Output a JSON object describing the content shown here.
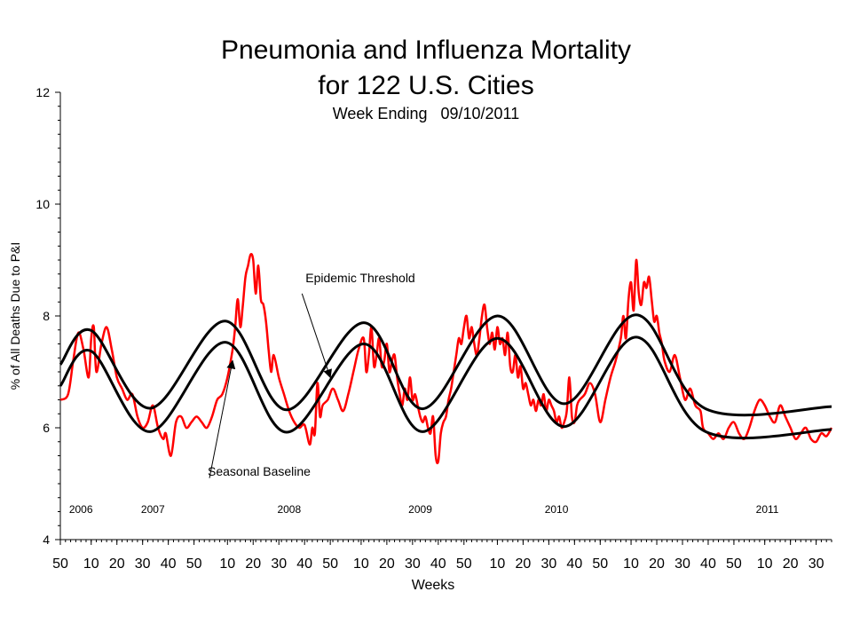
{
  "chart_data": {
    "type": "line",
    "title_line1": "Pneumonia and Influenza Mortality",
    "title_line2": "for 122 U.S. Cities",
    "subtitle": "Week Ending   09/10/2011",
    "xlabel": "Weeks",
    "ylabel": "% of All Deaths Due to P&I",
    "ylim": [
      4,
      12
    ],
    "y_ticks": [
      "4",
      "6",
      "8",
      "10",
      "12"
    ],
    "x_ticks": [
      "50",
      "10",
      "20",
      "30",
      "40",
      "50",
      "10",
      "20",
      "30",
      "40",
      "50",
      "10",
      "20",
      "30",
      "40",
      "50",
      "10",
      "20",
      "30",
      "40",
      "50",
      "10",
      "20",
      "30",
      "40",
      "50",
      "10",
      "20",
      "30"
    ],
    "x_tick_index": [
      0,
      12,
      22,
      32,
      42,
      52,
      65,
      75,
      85,
      95,
      105,
      117,
      127,
      137,
      147,
      157,
      170,
      180,
      190,
      200,
      210,
      222,
      232,
      242,
      252,
      262,
      274,
      284,
      294
    ],
    "week_count": 300,
    "year_labels": [
      {
        "text": "2006",
        "index": 8
      },
      {
        "text": "2007",
        "index": 36
      },
      {
        "text": "2008",
        "index": 89
      },
      {
        "text": "2009",
        "index": 140
      },
      {
        "text": "2010",
        "index": 193
      },
      {
        "text": "2011",
        "index": 275
      }
    ],
    "annotations": [
      {
        "text": "Epidemic Threshold",
        "arrow_from": [
          94,
          8.4
        ],
        "arrow_to": [
          105,
          6.9
        ]
      },
      {
        "text": "Seasonal Baseline",
        "arrow_from": [
          58,
          5.1
        ],
        "arrow_to": [
          67,
          7.2
        ]
      }
    ],
    "series": [
      {
        "name": "Epidemic Threshold",
        "color": "#000000",
        "points": [
          [
            0,
            7.13
          ],
          [
            12,
            7.74
          ],
          [
            35,
            6.35
          ],
          [
            64,
            7.91
          ],
          [
            88,
            6.32
          ],
          [
            118,
            7.88
          ],
          [
            141,
            6.34
          ],
          [
            170,
            8.0
          ],
          [
            196,
            6.43
          ],
          [
            224,
            8.02
          ],
          [
            251,
            6.34
          ],
          [
            300,
            6.38
          ]
        ]
      },
      {
        "name": "Seasonal Baseline",
        "color": "#000000",
        "points": [
          [
            0,
            6.75
          ],
          [
            12,
            7.37
          ],
          [
            35,
            5.93
          ],
          [
            64,
            7.53
          ],
          [
            88,
            5.92
          ],
          [
            118,
            7.5
          ],
          [
            141,
            5.93
          ],
          [
            170,
            7.6
          ],
          [
            196,
            6.02
          ],
          [
            224,
            7.62
          ],
          [
            251,
            5.93
          ],
          [
            300,
            5.97
          ]
        ]
      },
      {
        "name": "",
        "color": "#ff0000",
        "points": [
          [
            0,
            6.5
          ],
          [
            3,
            6.6
          ],
          [
            5,
            7.2
          ],
          [
            7,
            7.7
          ],
          [
            9,
            7.4
          ],
          [
            11,
            6.9
          ],
          [
            12,
            7.6
          ],
          [
            13,
            7.8
          ],
          [
            14,
            7.0
          ],
          [
            16,
            7.5
          ],
          [
            18,
            7.8
          ],
          [
            20,
            7.4
          ],
          [
            22,
            6.9
          ],
          [
            24,
            6.7
          ],
          [
            26,
            6.5
          ],
          [
            28,
            6.6
          ],
          [
            30,
            6.2
          ],
          [
            32,
            6.0
          ],
          [
            34,
            6.1
          ],
          [
            36,
            6.4
          ],
          [
            38,
            6.0
          ],
          [
            40,
            5.8
          ],
          [
            41,
            5.9
          ],
          [
            43,
            5.5
          ],
          [
            45,
            6.1
          ],
          [
            47,
            6.2
          ],
          [
            49,
            6.0
          ],
          [
            51,
            6.1
          ],
          [
            53,
            6.2
          ],
          [
            55,
            6.1
          ],
          [
            57,
            6.0
          ],
          [
            59,
            6.2
          ],
          [
            61,
            6.5
          ],
          [
            63,
            6.6
          ],
          [
            65,
            6.9
          ],
          [
            67,
            7.4
          ],
          [
            68,
            7.8
          ],
          [
            69,
            8.3
          ],
          [
            70,
            7.8
          ],
          [
            71,
            8.2
          ],
          [
            72,
            8.7
          ],
          [
            73,
            8.9
          ],
          [
            74,
            9.1
          ],
          [
            75,
            9.0
          ],
          [
            76,
            8.4
          ],
          [
            77,
            8.9
          ],
          [
            78,
            8.3
          ],
          [
            79,
            8.2
          ],
          [
            80,
            7.9
          ],
          [
            81,
            7.4
          ],
          [
            82,
            7.0
          ],
          [
            83,
            7.3
          ],
          [
            85,
            6.9
          ],
          [
            87,
            6.6
          ],
          [
            89,
            6.3
          ],
          [
            91,
            6.1
          ],
          [
            93,
            6.0
          ],
          [
            95,
            6.05
          ],
          [
            97,
            5.7
          ],
          [
            98,
            6.0
          ],
          [
            99,
            5.9
          ],
          [
            100,
            6.8
          ],
          [
            101,
            6.2
          ],
          [
            102,
            6.4
          ],
          [
            104,
            6.5
          ],
          [
            106,
            6.7
          ],
          [
            108,
            6.5
          ],
          [
            110,
            6.3
          ],
          [
            112,
            6.6
          ],
          [
            114,
            7.0
          ],
          [
            116,
            7.4
          ],
          [
            118,
            7.6
          ],
          [
            119,
            7.0
          ],
          [
            120,
            7.3
          ],
          [
            121,
            7.8
          ],
          [
            122,
            7.1
          ],
          [
            123,
            7.3
          ],
          [
            124,
            7.6
          ],
          [
            125,
            7.1
          ],
          [
            126,
            7.2
          ],
          [
            127,
            7.5
          ],
          [
            128,
            7.0
          ],
          [
            129,
            7.2
          ],
          [
            130,
            7.3
          ],
          [
            131,
            6.9
          ],
          [
            132,
            6.6
          ],
          [
            133,
            6.4
          ],
          [
            134,
            6.7
          ],
          [
            135,
            6.5
          ],
          [
            136,
            6.9
          ],
          [
            137,
            6.5
          ],
          [
            138,
            6.6
          ],
          [
            139,
            6.4
          ],
          [
            140,
            6.2
          ],
          [
            141,
            6.1
          ],
          [
            142,
            6.2
          ],
          [
            143,
            6.0
          ],
          [
            144,
            5.9
          ],
          [
            145,
            6.2
          ],
          [
            146,
            5.5
          ],
          [
            147,
            5.4
          ],
          [
            148,
            5.9
          ],
          [
            149,
            6.1
          ],
          [
            150,
            6.2
          ],
          [
            151,
            6.5
          ],
          [
            152,
            6.7
          ],
          [
            153,
            7.0
          ],
          [
            154,
            7.3
          ],
          [
            155,
            7.6
          ],
          [
            156,
            7.5
          ],
          [
            157,
            7.8
          ],
          [
            158,
            8.0
          ],
          [
            159,
            7.6
          ],
          [
            160,
            7.8
          ],
          [
            161,
            7.5
          ],
          [
            162,
            7.3
          ],
          [
            163,
            7.6
          ],
          [
            164,
            8.0
          ],
          [
            165,
            8.2
          ],
          [
            166,
            7.8
          ],
          [
            167,
            7.5
          ],
          [
            168,
            7.7
          ],
          [
            169,
            7.4
          ],
          [
            170,
            7.8
          ],
          [
            171,
            7.5
          ],
          [
            172,
            7.6
          ],
          [
            173,
            7.3
          ],
          [
            174,
            7.7
          ],
          [
            175,
            7.1
          ],
          [
            176,
            7.0
          ],
          [
            177,
            7.3
          ],
          [
            178,
            6.9
          ],
          [
            179,
            7.1
          ],
          [
            180,
            6.7
          ],
          [
            181,
            6.8
          ],
          [
            182,
            6.6
          ],
          [
            183,
            6.4
          ],
          [
            184,
            6.5
          ],
          [
            185,
            6.3
          ],
          [
            186,
            6.5
          ],
          [
            187,
            6.4
          ],
          [
            188,
            6.6
          ],
          [
            189,
            6.3
          ],
          [
            190,
            6.5
          ],
          [
            191,
            6.4
          ],
          [
            192,
            6.3
          ],
          [
            193,
            6.1
          ],
          [
            194,
            6.2
          ],
          [
            195,
            6.0
          ],
          [
            196,
            6.1
          ],
          [
            197,
            6.3
          ],
          [
            198,
            6.9
          ],
          [
            199,
            6.2
          ],
          [
            200,
            6.1
          ],
          [
            201,
            6.4
          ],
          [
            202,
            6.5
          ],
          [
            204,
            6.6
          ],
          [
            206,
            6.8
          ],
          [
            208,
            6.6
          ],
          [
            210,
            6.1
          ],
          [
            212,
            6.5
          ],
          [
            214,
            6.9
          ],
          [
            216,
            7.2
          ],
          [
            218,
            7.6
          ],
          [
            219,
            8.0
          ],
          [
            220,
            7.6
          ],
          [
            221,
            8.3
          ],
          [
            222,
            8.6
          ],
          [
            223,
            8.1
          ],
          [
            224,
            9.0
          ],
          [
            225,
            8.4
          ],
          [
            226,
            8.2
          ],
          [
            227,
            8.6
          ],
          [
            228,
            8.5
          ],
          [
            229,
            8.7
          ],
          [
            230,
            8.3
          ],
          [
            231,
            7.9
          ],
          [
            232,
            8.0
          ],
          [
            233,
            7.7
          ],
          [
            234,
            7.5
          ],
          [
            235,
            7.2
          ],
          [
            237,
            7.0
          ],
          [
            239,
            7.3
          ],
          [
            241,
            6.9
          ],
          [
            243,
            6.5
          ],
          [
            245,
            6.7
          ],
          [
            247,
            6.4
          ],
          [
            249,
            6.3
          ],
          [
            250,
            6.0
          ],
          [
            252,
            5.9
          ],
          [
            254,
            5.8
          ],
          [
            256,
            5.9
          ],
          [
            258,
            5.8
          ],
          [
            260,
            6.0
          ],
          [
            262,
            6.1
          ],
          [
            264,
            5.9
          ],
          [
            266,
            5.8
          ],
          [
            268,
            6.0
          ],
          [
            270,
            6.3
          ],
          [
            272,
            6.5
          ],
          [
            274,
            6.4
          ],
          [
            276,
            6.2
          ],
          [
            278,
            6.1
          ],
          [
            280,
            6.4
          ],
          [
            282,
            6.2
          ],
          [
            284,
            6.0
          ],
          [
            286,
            5.8
          ],
          [
            288,
            5.9
          ],
          [
            290,
            6.0
          ],
          [
            292,
            5.8
          ],
          [
            294,
            5.75
          ],
          [
            296,
            5.9
          ],
          [
            298,
            5.85
          ],
          [
            300,
            6.0
          ]
        ]
      }
    ]
  }
}
